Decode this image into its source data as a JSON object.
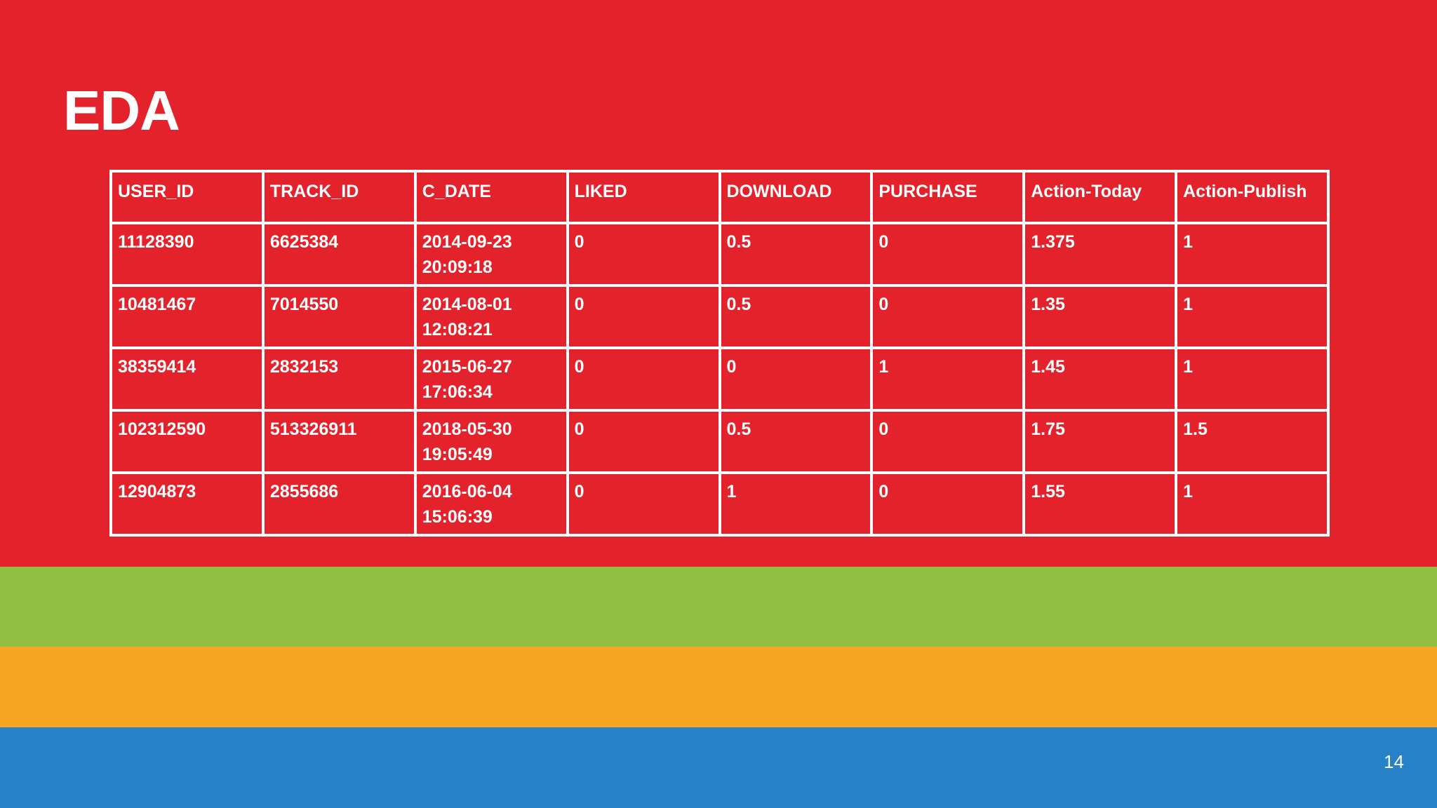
{
  "slide": {
    "title": "EDA",
    "page_number": "14"
  },
  "colors": {
    "red": "#e3222b",
    "green": "#90bf43",
    "orange": "#f5a521",
    "blue": "#2781c7",
    "text": "#ffffff"
  },
  "table": {
    "headers": [
      "USER_ID",
      "TRACK_ID",
      "C_DATE",
      "LIKED",
      "DOWNLOAD",
      "PURCHASE",
      "Action-Today",
      "Action-Publish"
    ],
    "rows": [
      [
        "11128390",
        "6625384",
        "2014-09-23\n20:09:18",
        "0",
        "0.5",
        "0",
        "1.375",
        "1"
      ],
      [
        "10481467",
        "7014550",
        "2014-08-01\n12:08:21",
        "0",
        "0.5",
        "0",
        "1.35",
        "1"
      ],
      [
        "38359414",
        "2832153",
        "2015-06-27\n17:06:34",
        "0",
        "0",
        "1",
        "1.45",
        "1"
      ],
      [
        "102312590",
        "513326911",
        "2018-05-30\n19:05:49",
        "0",
        "0.5",
        "0",
        "1.75",
        "1.5"
      ],
      [
        "12904873",
        "2855686",
        "2016-06-04\n15:06:39",
        "0",
        "1",
        "0",
        "1.55",
        "1"
      ]
    ]
  }
}
